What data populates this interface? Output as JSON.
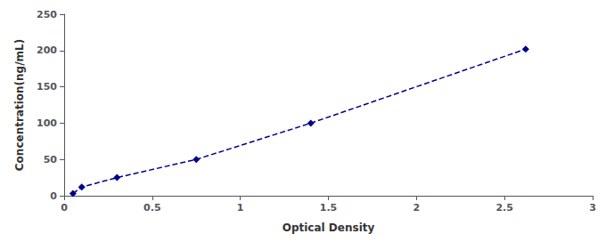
{
  "chart_data": {
    "type": "line",
    "xlabel": "Optical Density",
    "ylabel": "Concentration(ng/mL)",
    "x": [
      0.05,
      0.1,
      0.3,
      0.75,
      1.4,
      2.62
    ],
    "values": [
      3,
      12,
      25,
      50,
      100,
      202
    ],
    "color": "#00008B",
    "marker": "diamond",
    "line_style": "dashed",
    "xlim": [
      0,
      3
    ],
    "ylim": [
      0,
      250
    ],
    "xticks": [
      0,
      0.5,
      1,
      1.5,
      2,
      2.5,
      3
    ],
    "yticks": [
      0,
      50,
      100,
      150,
      200,
      250
    ],
    "grid": false
  }
}
